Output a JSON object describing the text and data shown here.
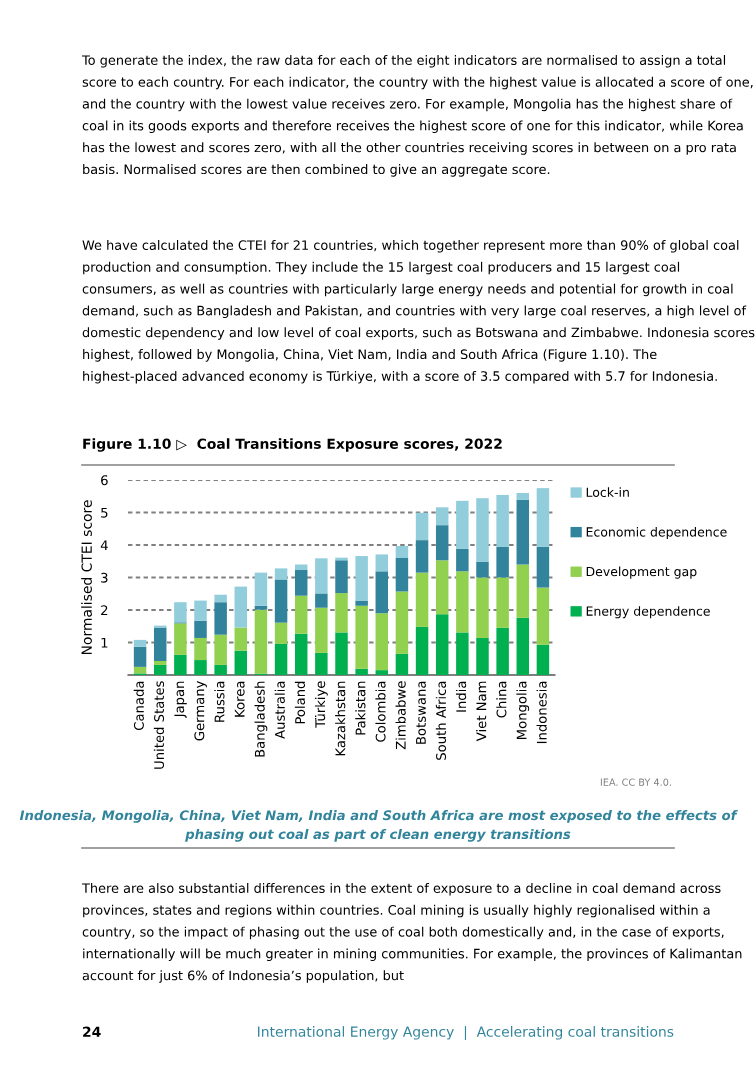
{
  "chart_data": {
    "type": "bar",
    "stacked": true,
    "title": "Figure 1.10 ▷  Coal Transitions Exposure scores, 2022",
    "ylabel": "Normalised CTEI score",
    "categories": [
      "Canada",
      "United States",
      "Japan",
      "Germany",
      "Russia",
      "Korea",
      "Bangladesh",
      "Australia",
      "Poland",
      "Türkiye",
      "Kazakhstan",
      "Pakistan",
      "Colombia",
      "Zimbabwe",
      "Botswana",
      "South Africa",
      "India",
      "Viet Nam",
      "China",
      "Mongolia",
      "Indonesia"
    ],
    "series": [
      {
        "name": "Energy dependence",
        "color": "#00b050",
        "values": [
          0.05,
          0.31,
          0.62,
          0.46,
          0.31,
          0.75,
          0.04,
          0.96,
          1.27,
          0.68,
          1.31,
          0.19,
          0.15,
          0.65,
          1.48,
          1.87,
          1.31,
          1.14,
          1.45,
          1.76,
          0.93
        ]
      },
      {
        "name": "Development gap",
        "color": "#92d050",
        "values": [
          0.2,
          0.12,
          0.97,
          0.68,
          0.93,
          0.71,
          1.97,
          0.65,
          1.17,
          1.39,
          1.21,
          1.94,
          1.75,
          1.92,
          1.67,
          1.66,
          1.88,
          1.86,
          1.55,
          1.64,
          1.76
        ]
      },
      {
        "name": "Economic dependence",
        "color": "#31849b",
        "values": [
          0.62,
          1.03,
          0.03,
          0.53,
          1.0,
          0,
          0.12,
          1.33,
          0.79,
          0.44,
          1.01,
          0.16,
          1.29,
          1.03,
          1.0,
          1.08,
          0.69,
          0.49,
          0.94,
          1.99,
          1.25
        ]
      },
      {
        "name": "Lock-in",
        "color": "#92cddc",
        "values": [
          0.21,
          0.06,
          0.62,
          0.62,
          0.23,
          1.26,
          1.02,
          0.34,
          0.17,
          1.08,
          0.08,
          1.37,
          0.52,
          0.37,
          0.84,
          0.55,
          1.48,
          1.95,
          1.6,
          0.21,
          1.81
        ]
      }
    ],
    "ylim": [
      0,
      6
    ],
    "yticks": [
      1,
      2,
      3,
      4,
      5,
      6
    ],
    "grid": "y",
    "legend": "right",
    "annotations": [
      "To generate the index, the raw data for each of the eight indicators are normalised to assign a total score to each country. For each indicator, the country with the highest value is allocated a score of one, and the country with the lowest value receives zero. For example, Mongolia has the highest share of coal in its goods exports and therefore receives the highest score of one for this indicator, while Korea has the lowest and scores zero, with all the other countries receiving scores in between on a pro rata basis. Normalised scores are then combined to give an aggregate score.",
      "We have calculated the CTEI for 21 countries, which together represent more than 90% of global coal production and consumption. They include the 15 largest coal producers and 15 largest coal consumers, as well as countries with particularly large energy needs and potential for growth in coal demand, such as Bangladesh and Pakistan, and countries with very large coal reserves, a high level of domestic dependency and low level of coal exports, such as Botswana and Zimbabwe. Indonesia scores highest, followed by Mongolia, China, Viet Nam, India and South Africa (Figure 1.10). The highest-placed advanced economy is Türkiye, with a score of 3.5 compared with 5.7 for Indonesia.",
      "IEA. CC BY 4.0.",
      "Indonesia, Mongolia, China, Viet Nam, India and South Africa are most exposed to the effects of phasing out coal as part of clean energy transitions",
      "There are also substantial differences in the extent of exposure to a decline in coal demand across provinces, states and regions within countries. Coal mining is usually highly regionalised within a country, so the impact of phasing out the use of coal both domestically and, in the case of exports, internationally will be much greater in mining communities. For example, the provinces of Kalimantan account for just 6% of Indonesia’s population, but",
      "24",
      "International Energy Agency  |  Accelerating coal transitions"
    ]
  }
}
